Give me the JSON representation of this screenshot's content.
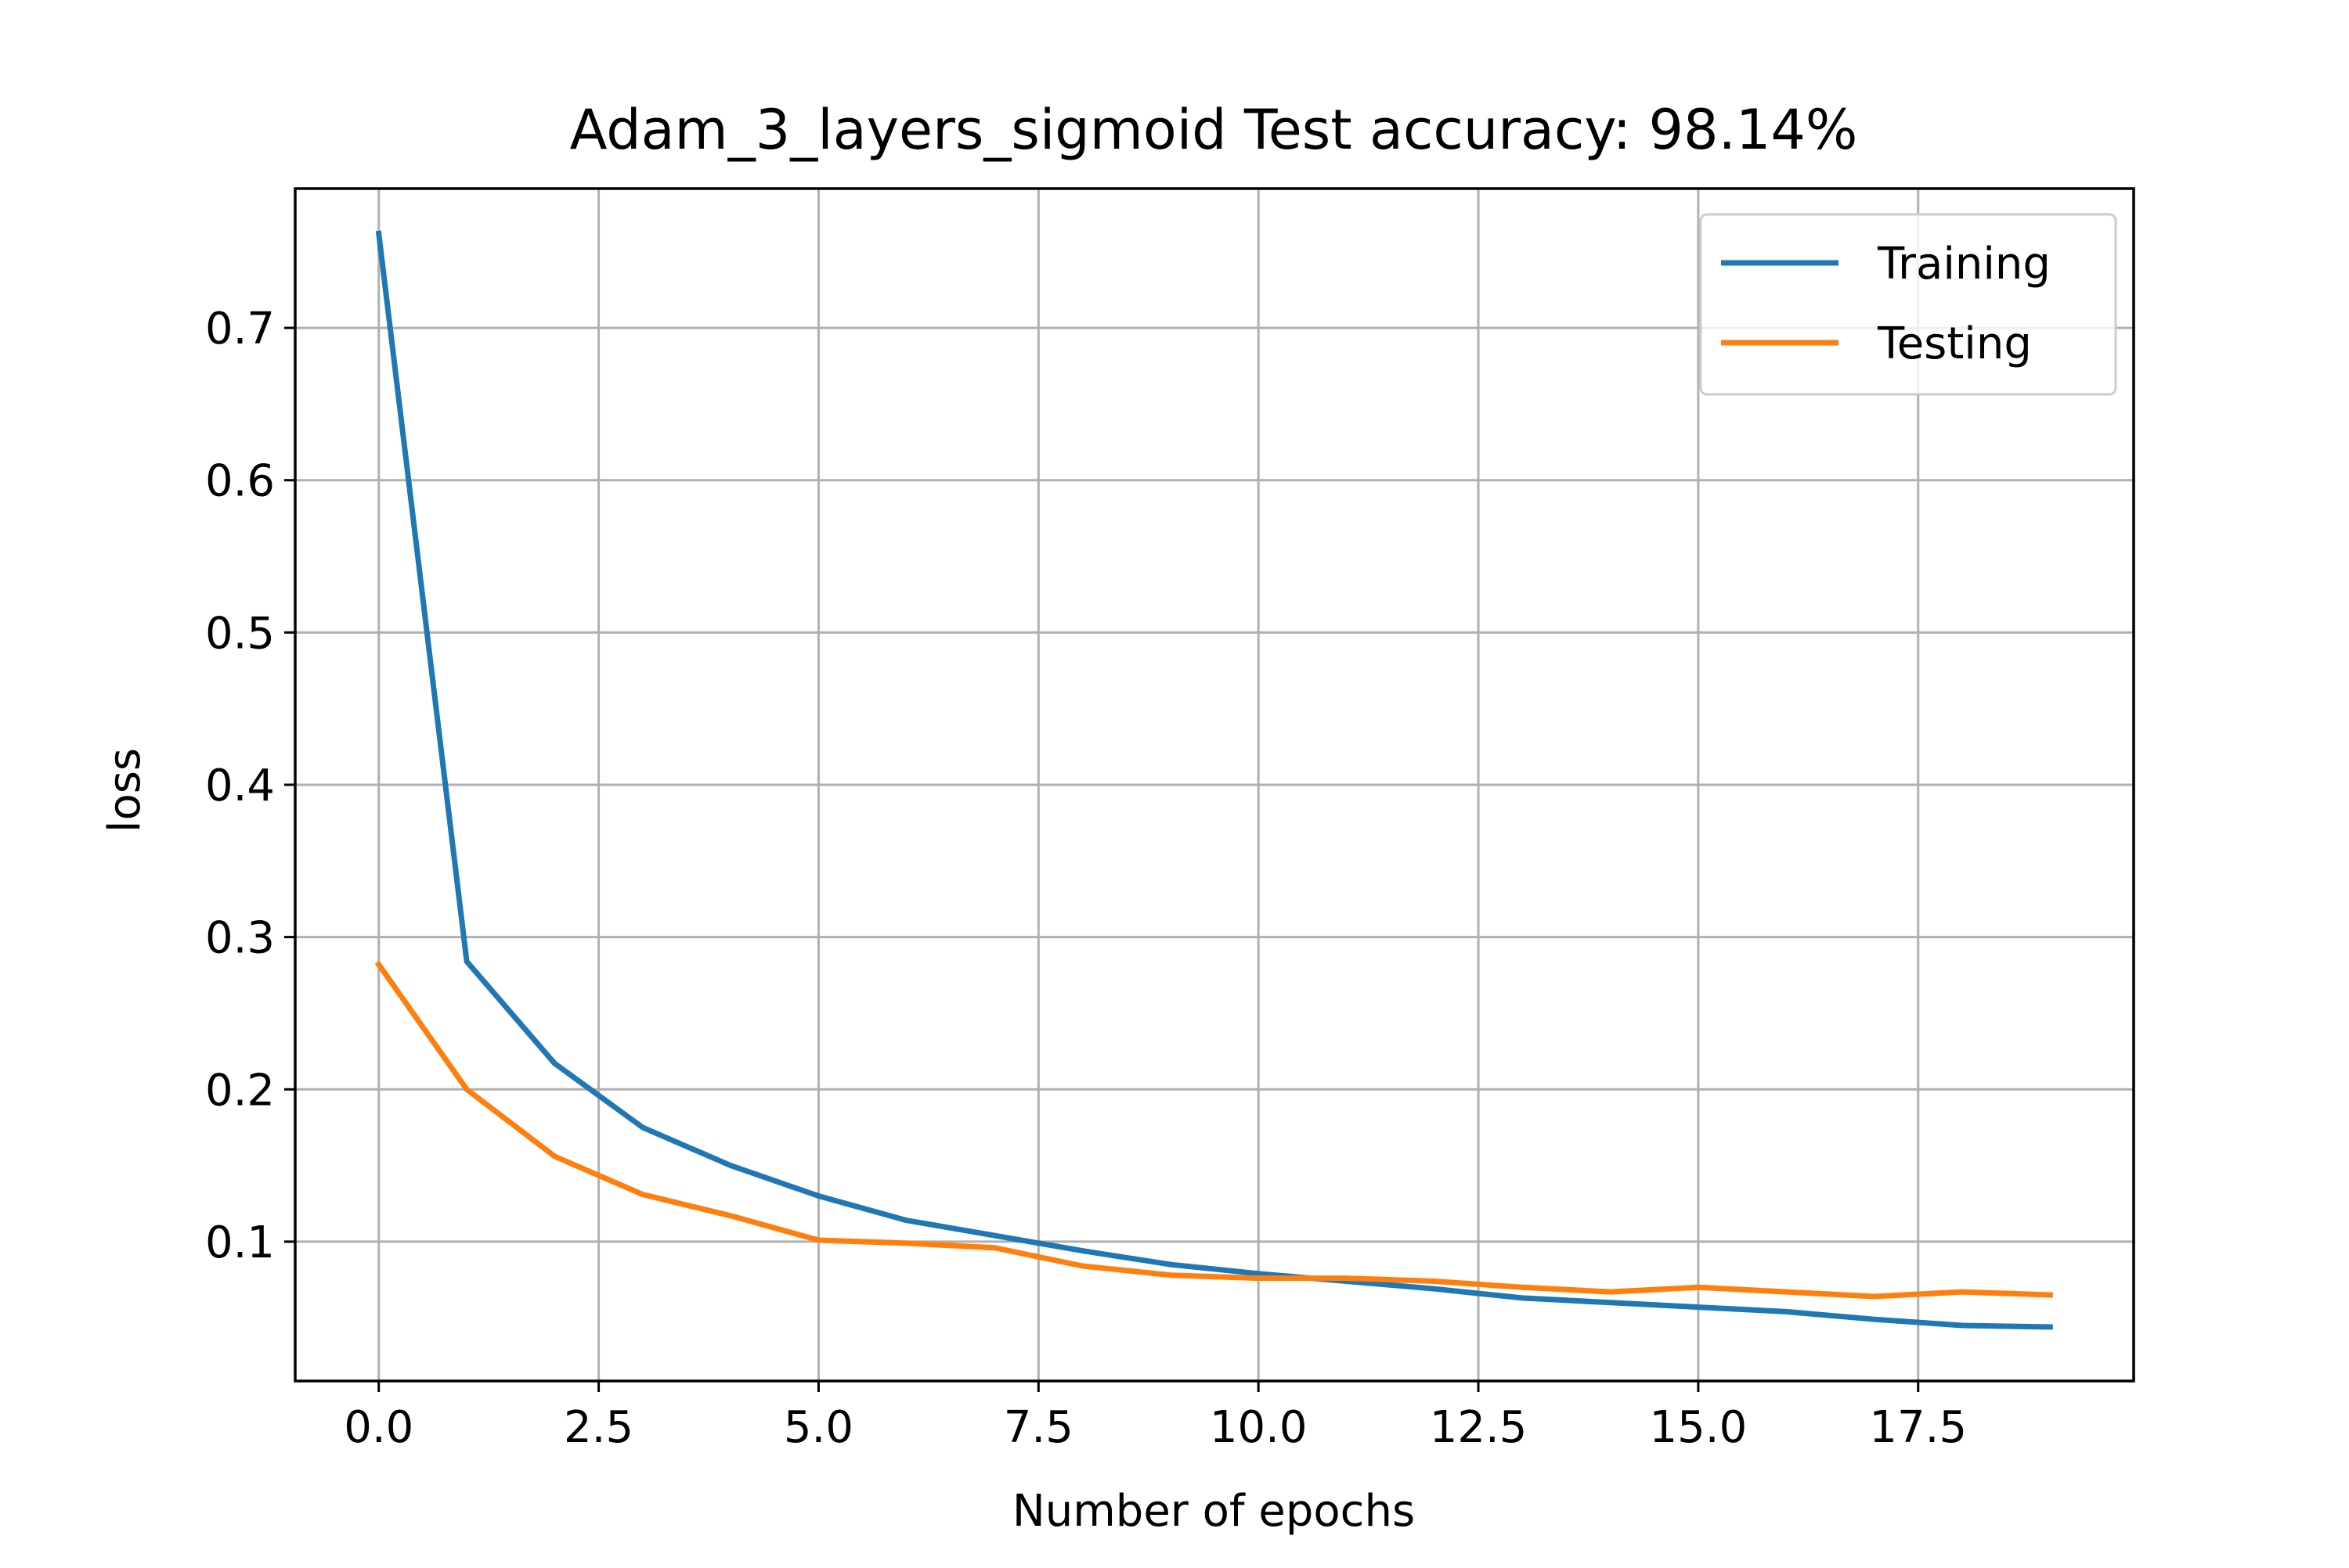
{
  "chart_data": {
    "type": "line",
    "title": "Adam_3_layers_sigmoid Test accuracy: 98.14%",
    "xlabel": "Number of epochs",
    "ylabel": "loss",
    "xlim": [
      -0.95,
      19.95
    ],
    "ylim": [
      0.0085,
      0.7915
    ],
    "x_ticks": [
      0.0,
      2.5,
      5.0,
      7.5,
      10.0,
      12.5,
      15.0,
      17.5
    ],
    "x_tick_labels": [
      "0.0",
      "2.5",
      "5.0",
      "7.5",
      "10.0",
      "12.5",
      "15.0",
      "17.5"
    ],
    "y_ticks": [
      0.1,
      0.2,
      0.3,
      0.4,
      0.5,
      0.6,
      0.7
    ],
    "y_tick_labels": [
      "0.1",
      "0.2",
      "0.3",
      "0.4",
      "0.5",
      "0.6",
      "0.7"
    ],
    "grid": true,
    "legend_position": "top-right",
    "x": [
      0,
      1,
      2,
      3,
      4,
      5,
      6,
      7,
      8,
      9,
      10,
      11,
      12,
      13,
      14,
      15,
      16,
      17,
      18,
      19
    ],
    "series": [
      {
        "name": "Training",
        "color": "#1f77b4",
        "values": [
          0.762,
          0.284,
          0.217,
          0.175,
          0.15,
          0.13,
          0.114,
          0.104,
          0.094,
          0.085,
          0.079,
          0.074,
          0.069,
          0.063,
          0.06,
          0.057,
          0.054,
          0.049,
          0.045,
          0.044
        ]
      },
      {
        "name": "Testing",
        "color": "#ff7f0e",
        "values": [
          0.282,
          0.2,
          0.156,
          0.131,
          0.117,
          0.101,
          0.099,
          0.096,
          0.084,
          0.078,
          0.076,
          0.076,
          0.074,
          0.07,
          0.067,
          0.07,
          0.067,
          0.064,
          0.067,
          0.065
        ]
      }
    ]
  }
}
